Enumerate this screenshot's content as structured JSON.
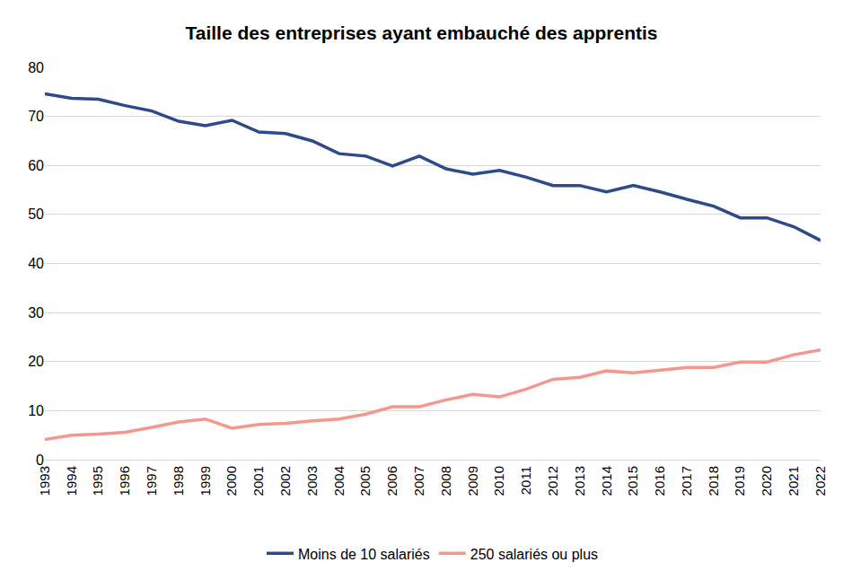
{
  "chart_data": {
    "type": "line",
    "title": "Taille des entreprises ayant embauché des apprentis",
    "categories": [
      "1993",
      "1994",
      "1995",
      "1996",
      "1997",
      "1998",
      "1999",
      "2000",
      "2001",
      "2002",
      "2003",
      "2004",
      "2005",
      "2006",
      "2007",
      "2008",
      "2009",
      "2010",
      "2011",
      "2012",
      "2013",
      "2014",
      "2015",
      "2016",
      "2017",
      "2018",
      "2019",
      "2020",
      "2021",
      "2022"
    ],
    "series": [
      {
        "name": "Moins de 10 salariés",
        "color": "#2E4A8B",
        "values": [
          74.6,
          73.7,
          73.5,
          72.2,
          71.1,
          69.0,
          68.1,
          69.2,
          66.8,
          66.5,
          65.0,
          62.4,
          61.9,
          59.9,
          61.9,
          59.3,
          58.2,
          59.0,
          57.6,
          55.9,
          55.9,
          54.6,
          55.9,
          54.6,
          53.1,
          51.7,
          49.3,
          49.3,
          47.5,
          44.7
        ]
      },
      {
        "name": "250 salariés ou plus",
        "color": "#F4978E",
        "values": [
          4.1,
          5.0,
          5.2,
          5.6,
          6.6,
          7.7,
          8.3,
          6.4,
          7.2,
          7.4,
          7.9,
          8.3,
          9.3,
          10.8,
          10.8,
          12.2,
          13.3,
          12.8,
          14.4,
          16.4,
          16.8,
          18.1,
          17.7,
          18.3,
          18.8,
          18.8,
          19.9,
          19.9,
          21.4,
          22.4
        ]
      }
    ],
    "ylim": [
      0,
      80
    ],
    "yticks": [
      0,
      10,
      20,
      30,
      40,
      50,
      60,
      70,
      80
    ],
    "grid": true,
    "legend": "bottom"
  }
}
